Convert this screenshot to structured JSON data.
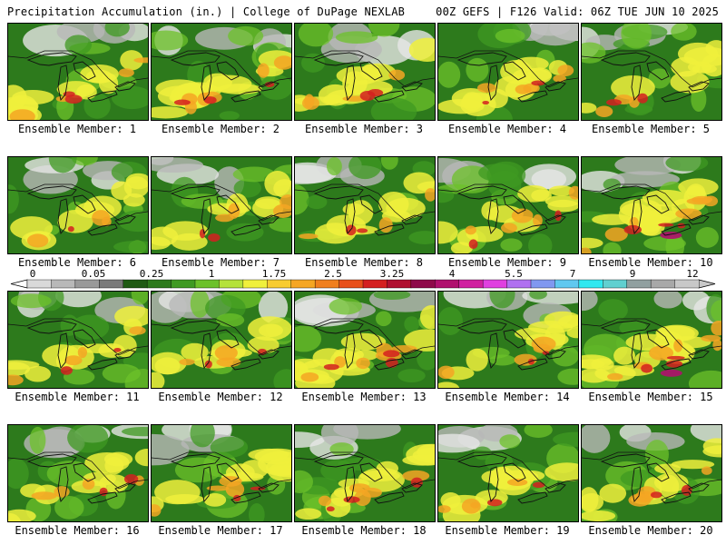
{
  "header": {
    "title_left": "Precipitation Accumulation (in.) | College of DuPage NEXLAB",
    "title_right": "00Z GEFS | F126 Valid: 06Z TUE JUN 10 2025"
  },
  "members": [
    {
      "label": "Ensemble Member: 1",
      "seed": 11,
      "intensity": 0.55
    },
    {
      "label": "Ensemble Member: 2",
      "seed": 23,
      "intensity": 0.7
    },
    {
      "label": "Ensemble Member: 3",
      "seed": 37,
      "intensity": 0.45
    },
    {
      "label": "Ensemble Member: 4",
      "seed": 41,
      "intensity": 0.6
    },
    {
      "label": "Ensemble Member: 5",
      "seed": 53,
      "intensity": 0.4
    },
    {
      "label": "Ensemble Member: 6",
      "seed": 67,
      "intensity": 0.35
    },
    {
      "label": "Ensemble Member: 7",
      "seed": 71,
      "intensity": 0.5
    },
    {
      "label": "Ensemble Member: 8",
      "seed": 83,
      "intensity": 0.4
    },
    {
      "label": "Ensemble Member: 9",
      "seed": 97,
      "intensity": 0.6
    },
    {
      "label": "Ensemble Member: 10",
      "seed": 101,
      "intensity": 0.85
    },
    {
      "label": "Ensemble Member: 11",
      "seed": 113,
      "intensity": 0.5
    },
    {
      "label": "Ensemble Member: 12",
      "seed": 127,
      "intensity": 0.4
    },
    {
      "label": "Ensemble Member: 13",
      "seed": 131,
      "intensity": 0.75
    },
    {
      "label": "Ensemble Member: 14",
      "seed": 149,
      "intensity": 0.45
    },
    {
      "label": "Ensemble Member: 15",
      "seed": 151,
      "intensity": 0.85
    },
    {
      "label": "Ensemble Member: 16",
      "seed": 163,
      "intensity": 0.5
    },
    {
      "label": "Ensemble Member: 17",
      "seed": 173,
      "intensity": 0.55
    },
    {
      "label": "Ensemble Member: 18",
      "seed": 181,
      "intensity": 0.65
    },
    {
      "label": "Ensemble Member: 19",
      "seed": 191,
      "intensity": 0.45
    },
    {
      "label": "Ensemble Member: 20",
      "seed": 197,
      "intensity": 0.55
    }
  ],
  "colorbar": {
    "tick_labels": [
      "0",
      "0.05",
      "0.25",
      "1",
      "1.75",
      "2.5",
      "3.25",
      "4",
      "5.5",
      "7",
      "9",
      "12"
    ],
    "colors": [
      "#d9d9d9",
      "#b8b8b8",
      "#999999",
      "#7a7a7a",
      "#1f5a14",
      "#2d7a1c",
      "#3f9a22",
      "#6cc12a",
      "#b5e23a",
      "#f0f03c",
      "#f8cc30",
      "#f5a623",
      "#f07f1e",
      "#e8501a",
      "#d42020",
      "#b01030",
      "#8e0a4a",
      "#b0106e",
      "#d020a0",
      "#e040e0",
      "#b070f0",
      "#8098f0",
      "#60c8f0",
      "#30e8f0",
      "#60d0d0",
      "#90a0a0",
      "#a8a8a8",
      "#c8c8c8"
    ],
    "levels": [
      0,
      0.01,
      0.03,
      0.05,
      0.1,
      0.15,
      0.25,
      0.5,
      0.75,
      1,
      1.25,
      1.5,
      1.75,
      2,
      2.5,
      2.75,
      3.25,
      3.5,
      4,
      4.5,
      5.5,
      6,
      7,
      8,
      9,
      10,
      12,
      15
    ]
  },
  "colors": {
    "heavy": "#d42020",
    "moderate": "#f5a623",
    "light": "#2d7a1c",
    "trace": "#b8b8b8",
    "extreme": "#b0106e"
  }
}
